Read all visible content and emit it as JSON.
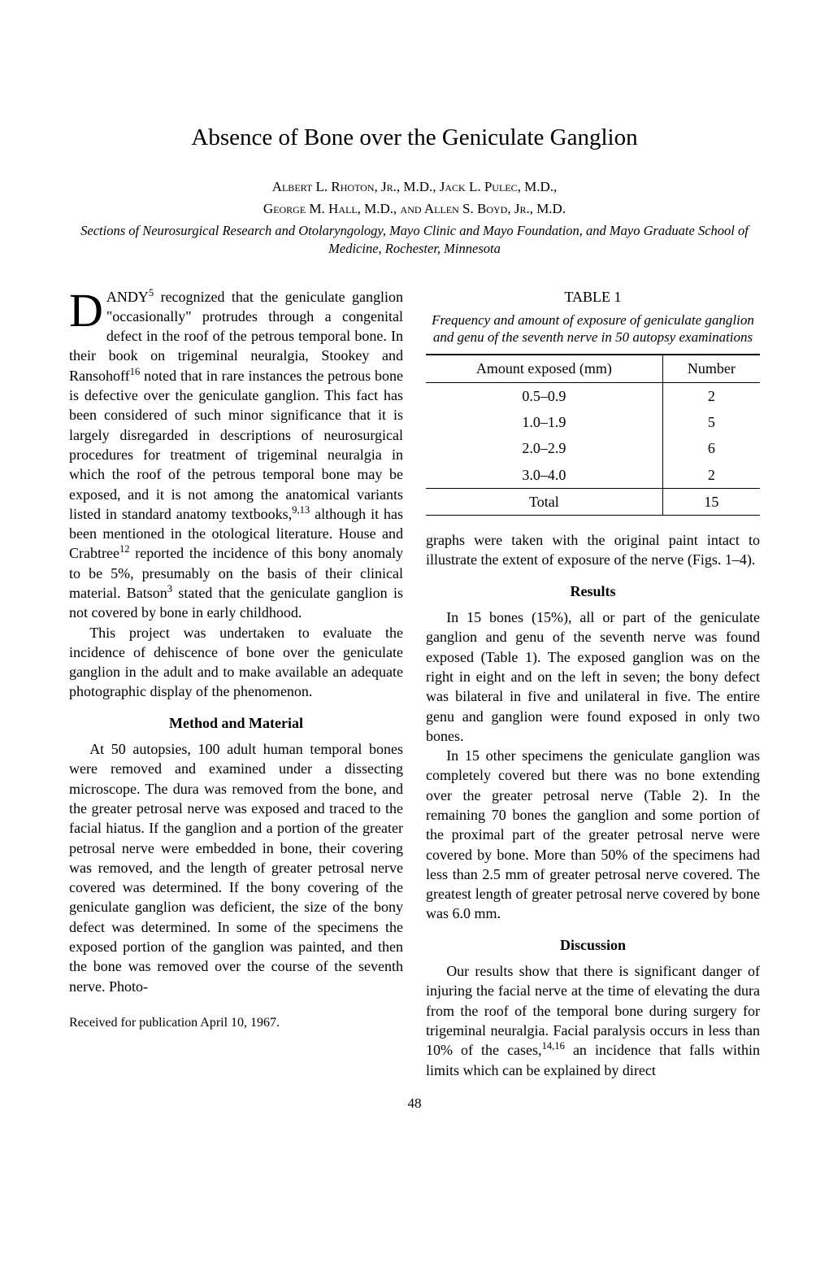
{
  "title": "Absence of Bone over the Geniculate Ganglion",
  "authors_line1": "Albert L. Rhoton, Jr., M.D., Jack L. Pulec, M.D.,",
  "authors_line2": "George M. Hall, M.D., and Allen S. Boyd, Jr., M.D.",
  "affiliation": "Sections of Neurosurgical Research and Otolaryngology, Mayo Clinic and Mayo Foundation, and Mayo Graduate School of Medicine, Rochester, Minnesota",
  "col1": {
    "para1_drop": "D",
    "para1_a": "ANDY",
    "para1_sup1": "5",
    "para1_b": " recognized that the geniculate ganglion \"occasionally\" protrudes through a congenital defect in the roof of the petrous temporal bone. In their book on trigeminal neuralgia, Stookey and Ransohoff",
    "para1_sup2": "16",
    "para1_c": " noted that in rare instances the petrous bone is defective over the geniculate ganglion. This fact has been considered of such minor significance that it is largely disregarded in descriptions of neurosurgical procedures for treatment of trigeminal neuralgia in which the roof of the petrous temporal bone may be exposed, and it is not among the anatomical variants listed in standard anatomy textbooks,",
    "para1_sup3": "9,13",
    "para1_d": " although it has been mentioned in the otological literature. House and Crabtree",
    "para1_sup4": "12",
    "para1_e": " reported the incidence of this bony anomaly to be 5%, presumably on the basis of their clinical material. Batson",
    "para1_sup5": "3",
    "para1_f": " stated that the geniculate ganglion is not covered by bone in early childhood.",
    "para2": "This project was undertaken to evaluate the incidence of dehiscence of bone over the geniculate ganglion in the adult and to make available an adequate photographic display of the phenomenon.",
    "heading1": "Method and Material",
    "para3": "At 50 autopsies, 100 adult human temporal bones were removed and examined under a dissecting microscope. The dura was removed from the bone, and the greater petrosal nerve was exposed and traced to the facial hiatus. If the ganglion and a portion of the greater petrosal nerve were embedded in bone, their covering was removed, and the length of greater petrosal nerve covered was determined. If the bony covering of the geniculate ganglion was deficient, the size of the bony defect was determined. In some of the specimens the exposed portion of the ganglion was painted, and then the bone was removed over the course of the seventh nerve. Photo-",
    "received": "Received for publication April 10, 1967."
  },
  "table1": {
    "label": "TABLE 1",
    "caption": "Frequency and amount of exposure of geniculate ganglion and genu of the seventh nerve in 50 autopsy examinations",
    "col1_header": "Amount exposed (mm)",
    "col2_header": "Number",
    "rows": [
      {
        "c1": "0.5–0.9",
        "c2": "2"
      },
      {
        "c1": "1.0–1.9",
        "c2": "5"
      },
      {
        "c1": "2.0–2.9",
        "c2": "6"
      },
      {
        "c1": "3.0–4.0",
        "c2": "2"
      }
    ],
    "total_label": "Total",
    "total_value": "15"
  },
  "col2": {
    "para1": "graphs were taken with the original paint intact to illustrate the extent of exposure of the nerve (Figs. 1–4).",
    "heading1": "Results",
    "para2": "In 15 bones (15%), all or part of the geniculate ganglion and genu of the seventh nerve was found exposed (Table 1). The exposed ganglion was on the right in eight and on the left in seven; the bony defect was bilateral in five and unilateral in five. The entire genu and ganglion were found exposed in only two bones.",
    "para3": "In 15 other specimens the geniculate ganglion was completely covered but there was no bone extending over the greater petrosal nerve (Table 2). In the remaining 70 bones the ganglion and some portion of the proximal part of the greater petrosal nerve were covered by bone. More than 50% of the specimens had less than 2.5 mm of greater petrosal nerve covered. The greatest length of greater petrosal nerve covered by bone was 6.0 mm.",
    "heading2": "Discussion",
    "para4_a": "Our results show that there is significant danger of injuring the facial nerve at the time of elevating the dura from the roof of the temporal bone during surgery for trigeminal neuralgia. Facial paralysis occurs in less than 10% of the cases,",
    "para4_sup": "14,16",
    "para4_b": " an incidence that falls within limits which can be explained by direct"
  },
  "page_number": "48"
}
